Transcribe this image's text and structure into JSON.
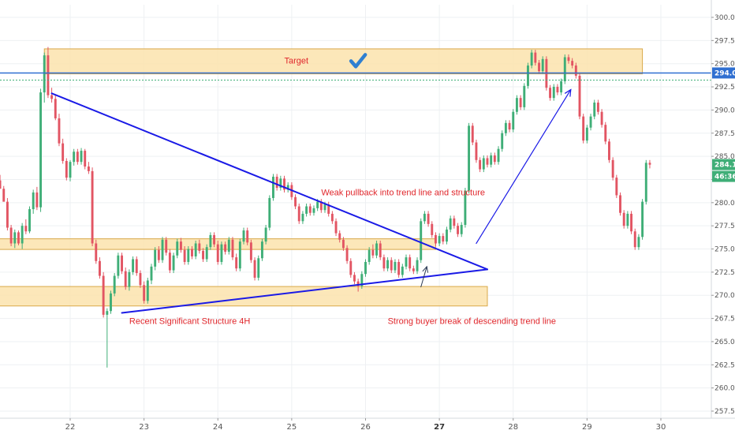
{
  "chart_data": {
    "type": "candlestick",
    "y_range": [
      256.5,
      301.5
    ],
    "y_ticks": [
      "300.00",
      "297.50",
      "295.00",
      "292.50",
      "290.00",
      "287.50",
      "285.00",
      "282.50",
      "280.00",
      "277.50",
      "275.00",
      "272.50",
      "270.00",
      "267.50",
      "265.00",
      "262.50",
      "260.00",
      "257.50"
    ],
    "x_ticks": [
      {
        "label": "22",
        "bold": false
      },
      {
        "label": "23",
        "bold": false
      },
      {
        "label": "24",
        "bold": false
      },
      {
        "label": "25",
        "bold": false
      },
      {
        "label": "26",
        "bold": false
      },
      {
        "label": "27",
        "bold": true
      },
      {
        "label": "28",
        "bold": false
      },
      {
        "label": "29",
        "bold": false
      },
      {
        "label": "30",
        "bold": false
      }
    ],
    "price_tags": [
      {
        "text": "294.00",
        "value": 294.0,
        "color": "#2f6fd1"
      },
      {
        "text": "284.11",
        "value": 284.11,
        "color": "#3fae77"
      },
      {
        "text": "46:36",
        "value": 283.0,
        "color": "#3fae77"
      }
    ],
    "zones": [
      {
        "name": "target-zone",
        "from": [
          21.65,
          296.6
        ],
        "to": [
          29.75,
          293.9
        ]
      },
      {
        "name": "mid-support-zone",
        "from": [
          20.85,
          276.1
        ],
        "to": [
          26.95,
          274.95
        ]
      },
      {
        "name": "lower-support-zone",
        "from": [
          20.65,
          270.95
        ],
        "to": [
          27.65,
          268.85
        ]
      }
    ],
    "lines": [
      {
        "name": "descending-trend-line",
        "from": [
          21.75,
          291.8
        ],
        "to": [
          27.65,
          272.8
        ],
        "color": "#1a1ae6",
        "width": 2
      },
      {
        "name": "ascending-trend-line",
        "from": [
          22.7,
          268.1
        ],
        "to": [
          27.65,
          272.8
        ],
        "color": "#1a1ae6",
        "width": 2
      },
      {
        "name": "move-arrow-line",
        "from": [
          27.5,
          275.6
        ],
        "to": [
          28.78,
          292.2
        ],
        "color": "#1a1ae6",
        "width": 1.2
      },
      {
        "name": "breakout-arrow-line",
        "from": [
          26.75,
          270.9
        ],
        "to": [
          26.83,
          273.1
        ],
        "color": "#2b3a55",
        "width": 1
      }
    ],
    "annotations": [
      {
        "text": "Target",
        "x": 24.9,
        "y": 295.0
      },
      {
        "text": "Weak pullback into trend line and structure",
        "x": 25.4,
        "y": 280.8
      },
      {
        "text": "Recent Significant Structure 4H",
        "x": 22.8,
        "y": 266.9
      },
      {
        "text": "Strong buyer break of descending trend line",
        "x": 26.3,
        "y": 266.9
      }
    ],
    "check_icon_at": [
      25.9,
      295.2
    ],
    "candles": [
      [
        21.0,
        282.2,
        282.6,
        281.8,
        282.4
      ],
      [
        21.05,
        282.4,
        283.0,
        281.9,
        281.5
      ],
      [
        21.1,
        281.5,
        281.8,
        280.2,
        280.1
      ],
      [
        21.15,
        280.1,
        280.5,
        277.0,
        277.3
      ],
      [
        21.2,
        277.3,
        277.6,
        275.3,
        275.6
      ],
      [
        21.25,
        275.6,
        277.1,
        275.1,
        276.8
      ],
      [
        21.3,
        276.8,
        277.0,
        275.4,
        275.6
      ],
      [
        21.35,
        275.6,
        277.8,
        275.0,
        277.5
      ],
      [
        21.4,
        277.5,
        278.2,
        276.6,
        276.9
      ],
      [
        21.45,
        276.9,
        279.6,
        276.7,
        279.3
      ],
      [
        21.5,
        279.3,
        281.4,
        278.8,
        281.1
      ],
      [
        21.55,
        281.1,
        281.7,
        279.2,
        279.5
      ],
      [
        21.6,
        279.5,
        292.3,
        279.0,
        291.9
      ],
      [
        21.65,
        291.9,
        296.2,
        290.8,
        295.9
      ],
      [
        21.7,
        295.9,
        296.8,
        291.3,
        291.6
      ],
      [
        21.75,
        291.6,
        292.4,
        290.8,
        291.2
      ],
      [
        21.8,
        291.2,
        291.6,
        288.9,
        289.1
      ],
      [
        21.85,
        289.1,
        289.6,
        286.1,
        286.4
      ],
      [
        21.9,
        286.4,
        286.9,
        284.2,
        284.5
      ],
      [
        21.95,
        284.5,
        284.8,
        282.4,
        282.7
      ],
      [
        22.0,
        282.7,
        284.6,
        282.3,
        284.4
      ],
      [
        22.05,
        284.4,
        285.8,
        284.0,
        285.5
      ],
      [
        22.1,
        285.5,
        285.8,
        284.1,
        284.4
      ],
      [
        22.15,
        284.4,
        285.9,
        284.1,
        285.6
      ],
      [
        22.2,
        285.6,
        285.8,
        283.6,
        283.9
      ],
      [
        22.25,
        283.9,
        284.4,
        283.1,
        283.4
      ],
      [
        22.3,
        283.4,
        283.8,
        275.3,
        275.6
      ],
      [
        22.35,
        275.6,
        276.0,
        273.4,
        273.7
      ],
      [
        22.4,
        273.7,
        274.1,
        271.8,
        272.1
      ],
      [
        22.45,
        272.1,
        272.5,
        267.6,
        267.9
      ],
      [
        22.5,
        267.9,
        268.6,
        262.2,
        268.3
      ],
      [
        22.55,
        268.3,
        270.5,
        268.0,
        270.2
      ],
      [
        22.6,
        270.2,
        272.4,
        269.9,
        272.1
      ],
      [
        22.65,
        272.1,
        274.6,
        271.8,
        274.3
      ],
      [
        22.7,
        274.3,
        274.6,
        272.3,
        272.6
      ],
      [
        22.75,
        272.6,
        273.0,
        270.6,
        270.9
      ],
      [
        22.8,
        270.9,
        272.8,
        270.5,
        272.5
      ],
      [
        22.85,
        272.5,
        274.2,
        272.2,
        273.9
      ],
      [
        22.9,
        273.9,
        274.2,
        272.1,
        272.4
      ],
      [
        22.95,
        272.4,
        272.7,
        270.8,
        271.1
      ],
      [
        23.0,
        271.1,
        271.5,
        269.1,
        269.4
      ],
      [
        23.05,
        269.4,
        271.9,
        269.1,
        271.6
      ],
      [
        23.1,
        271.6,
        273.4,
        271.2,
        273.1
      ],
      [
        23.15,
        273.1,
        275.2,
        272.7,
        274.9
      ],
      [
        23.2,
        274.9,
        275.3,
        273.5,
        273.8
      ],
      [
        23.25,
        273.8,
        276.3,
        273.5,
        276.0
      ],
      [
        23.3,
        276.0,
        276.3,
        274.3,
        274.6
      ],
      [
        23.35,
        274.6,
        275.0,
        272.4,
        272.7
      ],
      [
        23.4,
        272.7,
        274.6,
        272.4,
        274.3
      ],
      [
        23.45,
        274.3,
        276.1,
        274.0,
        275.8
      ],
      [
        23.5,
        275.8,
        276.2,
        274.6,
        274.9
      ],
      [
        23.55,
        274.9,
        275.3,
        273.3,
        273.6
      ],
      [
        23.6,
        273.6,
        275.3,
        273.3,
        275.0
      ],
      [
        23.65,
        275.0,
        275.3,
        273.9,
        274.2
      ],
      [
        23.7,
        274.2,
        275.9,
        273.9,
        275.6
      ],
      [
        23.75,
        275.6,
        276.0,
        274.5,
        274.8
      ],
      [
        23.8,
        274.8,
        275.1,
        273.6,
        273.9
      ],
      [
        23.85,
        273.9,
        275.5,
        273.6,
        275.2
      ],
      [
        23.9,
        275.2,
        276.8,
        274.9,
        276.5
      ],
      [
        23.95,
        276.5,
        276.8,
        275.2,
        275.5
      ],
      [
        24.0,
        275.5,
        275.9,
        273.3,
        273.6
      ],
      [
        24.05,
        273.6,
        275.8,
        273.3,
        275.5
      ],
      [
        24.1,
        275.5,
        275.8,
        274.4,
        274.7
      ],
      [
        24.15,
        274.7,
        276.3,
        274.4,
        276.0
      ],
      [
        24.2,
        276.0,
        276.3,
        273.8,
        274.1
      ],
      [
        24.25,
        274.1,
        274.5,
        272.6,
        272.9
      ],
      [
        24.3,
        272.9,
        276.1,
        272.6,
        275.8
      ],
      [
        24.35,
        275.8,
        277.3,
        275.5,
        277.0
      ],
      [
        24.4,
        277.0,
        277.3,
        275.4,
        275.7
      ],
      [
        24.45,
        275.7,
        276.0,
        273.5,
        273.8
      ],
      [
        24.5,
        273.8,
        274.1,
        271.6,
        271.9
      ],
      [
        24.55,
        271.9,
        274.3,
        271.6,
        274.0
      ],
      [
        24.6,
        274.0,
        276.1,
        273.7,
        275.8
      ],
      [
        24.65,
        275.8,
        277.6,
        275.5,
        277.3
      ],
      [
        24.7,
        277.3,
        280.8,
        277.0,
        280.5
      ],
      [
        24.75,
        280.5,
        283.1,
        280.2,
        282.8
      ],
      [
        24.8,
        282.8,
        283.1,
        281.3,
        281.6
      ],
      [
        24.85,
        281.6,
        282.9,
        281.3,
        282.6
      ],
      [
        24.9,
        282.6,
        282.9,
        281.1,
        281.4
      ],
      [
        24.95,
        281.4,
        282.2,
        281.1,
        281.9
      ],
      [
        25.0,
        281.9,
        282.2,
        280.3,
        280.6
      ],
      [
        25.05,
        280.6,
        280.9,
        279.3,
        279.6
      ],
      [
        25.1,
        279.6,
        279.9,
        277.7,
        278.0
      ],
      [
        25.15,
        278.0,
        279.1,
        277.7,
        278.8
      ],
      [
        25.2,
        278.8,
        279.9,
        278.5,
        279.6
      ],
      [
        25.25,
        279.6,
        279.9,
        278.6,
        278.9
      ],
      [
        25.3,
        278.9,
        279.7,
        278.6,
        279.4
      ],
      [
        25.35,
        279.4,
        280.4,
        279.1,
        280.1
      ],
      [
        25.4,
        280.1,
        280.4,
        278.9,
        279.2
      ],
      [
        25.45,
        279.2,
        280.1,
        278.9,
        279.8
      ],
      [
        25.5,
        279.8,
        280.1,
        278.5,
        278.8
      ],
      [
        25.55,
        278.8,
        279.1,
        277.7,
        278.0
      ],
      [
        25.6,
        278.0,
        278.3,
        276.4,
        276.7
      ],
      [
        25.65,
        276.7,
        277.0,
        275.7,
        276.0
      ],
      [
        25.7,
        276.0,
        276.3,
        274.8,
        275.1
      ],
      [
        25.75,
        275.1,
        275.4,
        273.4,
        273.7
      ],
      [
        25.8,
        273.7,
        274.0,
        271.9,
        272.2
      ],
      [
        25.85,
        272.2,
        272.5,
        271.2,
        271.5
      ],
      [
        25.9,
        271.5,
        271.8,
        270.4,
        271.0
      ],
      [
        25.95,
        271.0,
        272.6,
        270.7,
        272.3
      ],
      [
        26.0,
        272.3,
        273.9,
        272.0,
        273.6
      ],
      [
        26.05,
        273.6,
        275.2,
        273.3,
        274.9
      ],
      [
        26.1,
        274.9,
        275.5,
        274.0,
        274.3
      ],
      [
        26.15,
        274.3,
        275.9,
        274.0,
        275.6
      ],
      [
        26.2,
        275.6,
        275.9,
        273.8,
        274.1
      ],
      [
        26.25,
        274.1,
        274.4,
        272.6,
        272.9
      ],
      [
        26.3,
        272.9,
        274.1,
        272.6,
        273.8
      ],
      [
        26.35,
        273.8,
        274.1,
        272.4,
        272.7
      ],
      [
        26.4,
        272.7,
        273.9,
        272.4,
        273.6
      ],
      [
        26.45,
        273.6,
        273.9,
        271.9,
        272.2
      ],
      [
        26.5,
        272.2,
        273.4,
        271.9,
        273.1
      ],
      [
        26.55,
        273.1,
        274.4,
        272.8,
        274.1
      ],
      [
        26.6,
        274.1,
        274.4,
        272.6,
        272.9
      ],
      [
        26.65,
        272.9,
        273.2,
        272.3,
        272.6
      ],
      [
        26.7,
        272.6,
        274.1,
        272.3,
        273.8
      ],
      [
        26.75,
        273.8,
        278.3,
        273.5,
        278.0
      ],
      [
        26.8,
        278.0,
        279.1,
        277.7,
        278.8
      ],
      [
        26.85,
        278.8,
        279.1,
        277.4,
        277.7
      ],
      [
        26.9,
        277.7,
        278.0,
        276.2,
        276.5
      ],
      [
        26.95,
        276.5,
        276.8,
        275.3,
        275.6
      ],
      [
        27.0,
        275.6,
        276.7,
        275.3,
        276.4
      ],
      [
        27.05,
        276.4,
        276.7,
        275.5,
        275.8
      ],
      [
        27.1,
        275.8,
        277.4,
        275.5,
        277.1
      ],
      [
        27.15,
        277.1,
        278.6,
        276.8,
        278.3
      ],
      [
        27.2,
        278.3,
        278.6,
        277.2,
        277.5
      ],
      [
        27.25,
        277.5,
        277.8,
        276.3,
        276.6
      ],
      [
        27.3,
        276.6,
        277.9,
        276.3,
        277.6
      ],
      [
        27.35,
        277.6,
        281.6,
        277.3,
        281.3
      ],
      [
        27.4,
        281.3,
        288.6,
        281.0,
        288.3
      ],
      [
        27.45,
        288.3,
        288.6,
        286.2,
        286.5
      ],
      [
        27.5,
        286.5,
        286.8,
        284.3,
        284.6
      ],
      [
        27.55,
        284.6,
        284.9,
        283.3,
        283.6
      ],
      [
        27.6,
        283.6,
        285.1,
        283.3,
        284.8
      ],
      [
        27.65,
        284.8,
        285.1,
        283.8,
        284.1
      ],
      [
        27.7,
        284.1,
        285.4,
        283.8,
        285.1
      ],
      [
        27.75,
        285.1,
        285.4,
        284.1,
        284.4
      ],
      [
        27.8,
        284.4,
        286.1,
        284.1,
        285.8
      ],
      [
        27.85,
        285.8,
        287.8,
        285.5,
        287.5
      ],
      [
        27.9,
        287.5,
        288.9,
        287.2,
        288.6
      ],
      [
        27.95,
        288.6,
        288.9,
        287.6,
        287.9
      ],
      [
        28.0,
        287.9,
        290.1,
        287.6,
        289.8
      ],
      [
        28.05,
        289.8,
        291.6,
        289.5,
        291.3
      ],
      [
        28.1,
        291.3,
        291.6,
        290.0,
        290.3
      ],
      [
        28.15,
        290.3,
        292.9,
        290.0,
        292.6
      ],
      [
        28.2,
        292.6,
        295.1,
        292.3,
        294.8
      ],
      [
        28.25,
        294.8,
        296.5,
        294.5,
        296.2
      ],
      [
        28.3,
        296.2,
        296.5,
        294.8,
        295.1
      ],
      [
        28.35,
        295.1,
        295.4,
        293.9,
        294.2
      ],
      [
        28.4,
        294.2,
        295.8,
        293.9,
        295.5
      ],
      [
        28.45,
        295.5,
        295.8,
        292.1,
        292.4
      ],
      [
        28.5,
        292.4,
        292.7,
        291.0,
        291.3
      ],
      [
        28.55,
        291.3,
        292.8,
        291.0,
        292.5
      ],
      [
        28.6,
        292.5,
        292.8,
        291.6,
        291.9
      ],
      [
        28.65,
        291.9,
        293.4,
        291.6,
        293.1
      ],
      [
        28.7,
        293.1,
        296.0,
        292.8,
        295.7
      ],
      [
        28.75,
        295.7,
        296.0,
        295.0,
        295.3
      ],
      [
        28.8,
        295.3,
        295.6,
        294.5,
        294.8
      ],
      [
        28.85,
        294.8,
        295.1,
        293.4,
        293.7
      ],
      [
        28.9,
        293.7,
        294.0,
        289.0,
        289.3
      ],
      [
        28.95,
        289.3,
        289.6,
        286.4,
        286.7
      ],
      [
        29.0,
        286.7,
        288.4,
        286.4,
        288.1
      ],
      [
        29.05,
        288.1,
        289.6,
        287.8,
        289.3
      ],
      [
        29.1,
        289.3,
        291.1,
        289.0,
        290.8
      ],
      [
        29.15,
        290.8,
        291.1,
        289.5,
        289.8
      ],
      [
        29.2,
        289.8,
        290.1,
        288.1,
        288.4
      ],
      [
        29.25,
        288.4,
        288.7,
        286.3,
        286.6
      ],
      [
        29.3,
        286.6,
        286.9,
        284.3,
        284.6
      ],
      [
        29.35,
        284.6,
        284.9,
        282.4,
        282.7
      ],
      [
        29.4,
        282.7,
        283.0,
        280.5,
        280.8
      ],
      [
        29.45,
        280.8,
        281.1,
        278.6,
        278.9
      ],
      [
        29.5,
        278.9,
        279.2,
        277.2,
        277.5
      ],
      [
        29.55,
        277.5,
        279.1,
        277.2,
        278.8
      ],
      [
        29.6,
        278.8,
        279.1,
        276.6,
        276.9
      ],
      [
        29.65,
        276.9,
        277.2,
        274.9,
        275.2
      ],
      [
        29.7,
        275.2,
        276.6,
        274.9,
        276.3
      ],
      [
        29.75,
        276.3,
        280.4,
        276.0,
        280.1
      ],
      [
        29.8,
        280.1,
        284.6,
        279.8,
        284.3
      ],
      [
        29.85,
        284.3,
        284.6,
        283.7,
        284.1
      ]
    ]
  }
}
